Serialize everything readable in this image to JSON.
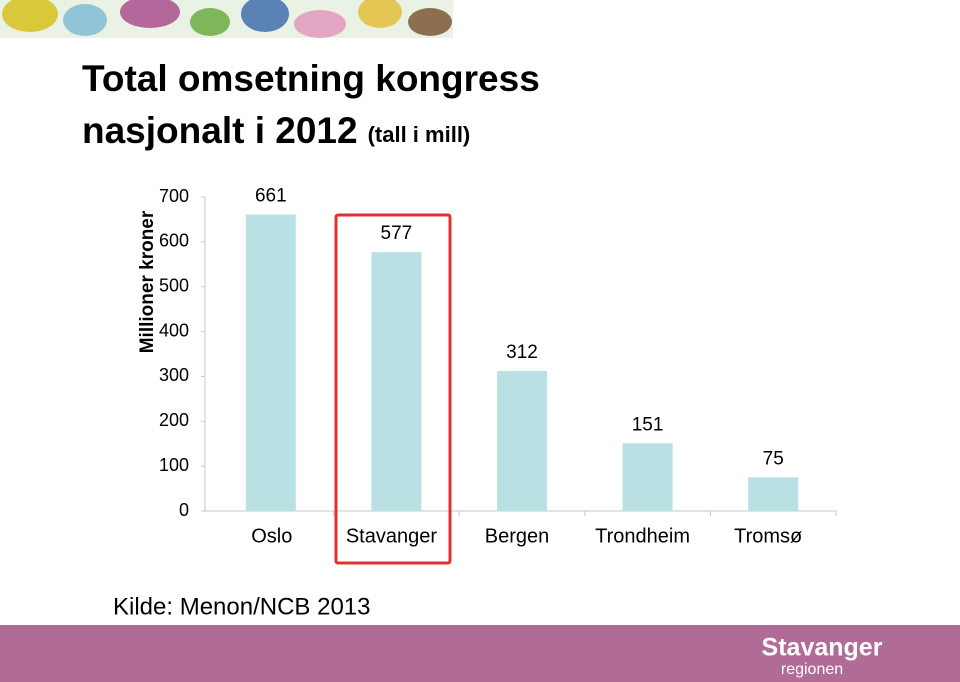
{
  "chart_data": {
    "type": "bar",
    "title": "Total omsetning kongress nasjonalt i 2012",
    "subtitle": "(tall i mill)",
    "y_label": "Millioner kroner",
    "categories": [
      "Oslo",
      "Stavanger",
      "Bergen",
      "Trondheim",
      "Tromsø"
    ],
    "values": [
      661,
      577,
      312,
      151,
      75
    ],
    "color": "#b9e0e2",
    "ylim": [
      0,
      700
    ],
    "yticks": [
      0,
      100,
      200,
      300,
      400,
      500,
      600,
      700
    ],
    "grid": false
  },
  "source": "Kilde: Menon/NCB 2013",
  "logo": {
    "name": "Stavanger",
    "sub": "regionen"
  }
}
